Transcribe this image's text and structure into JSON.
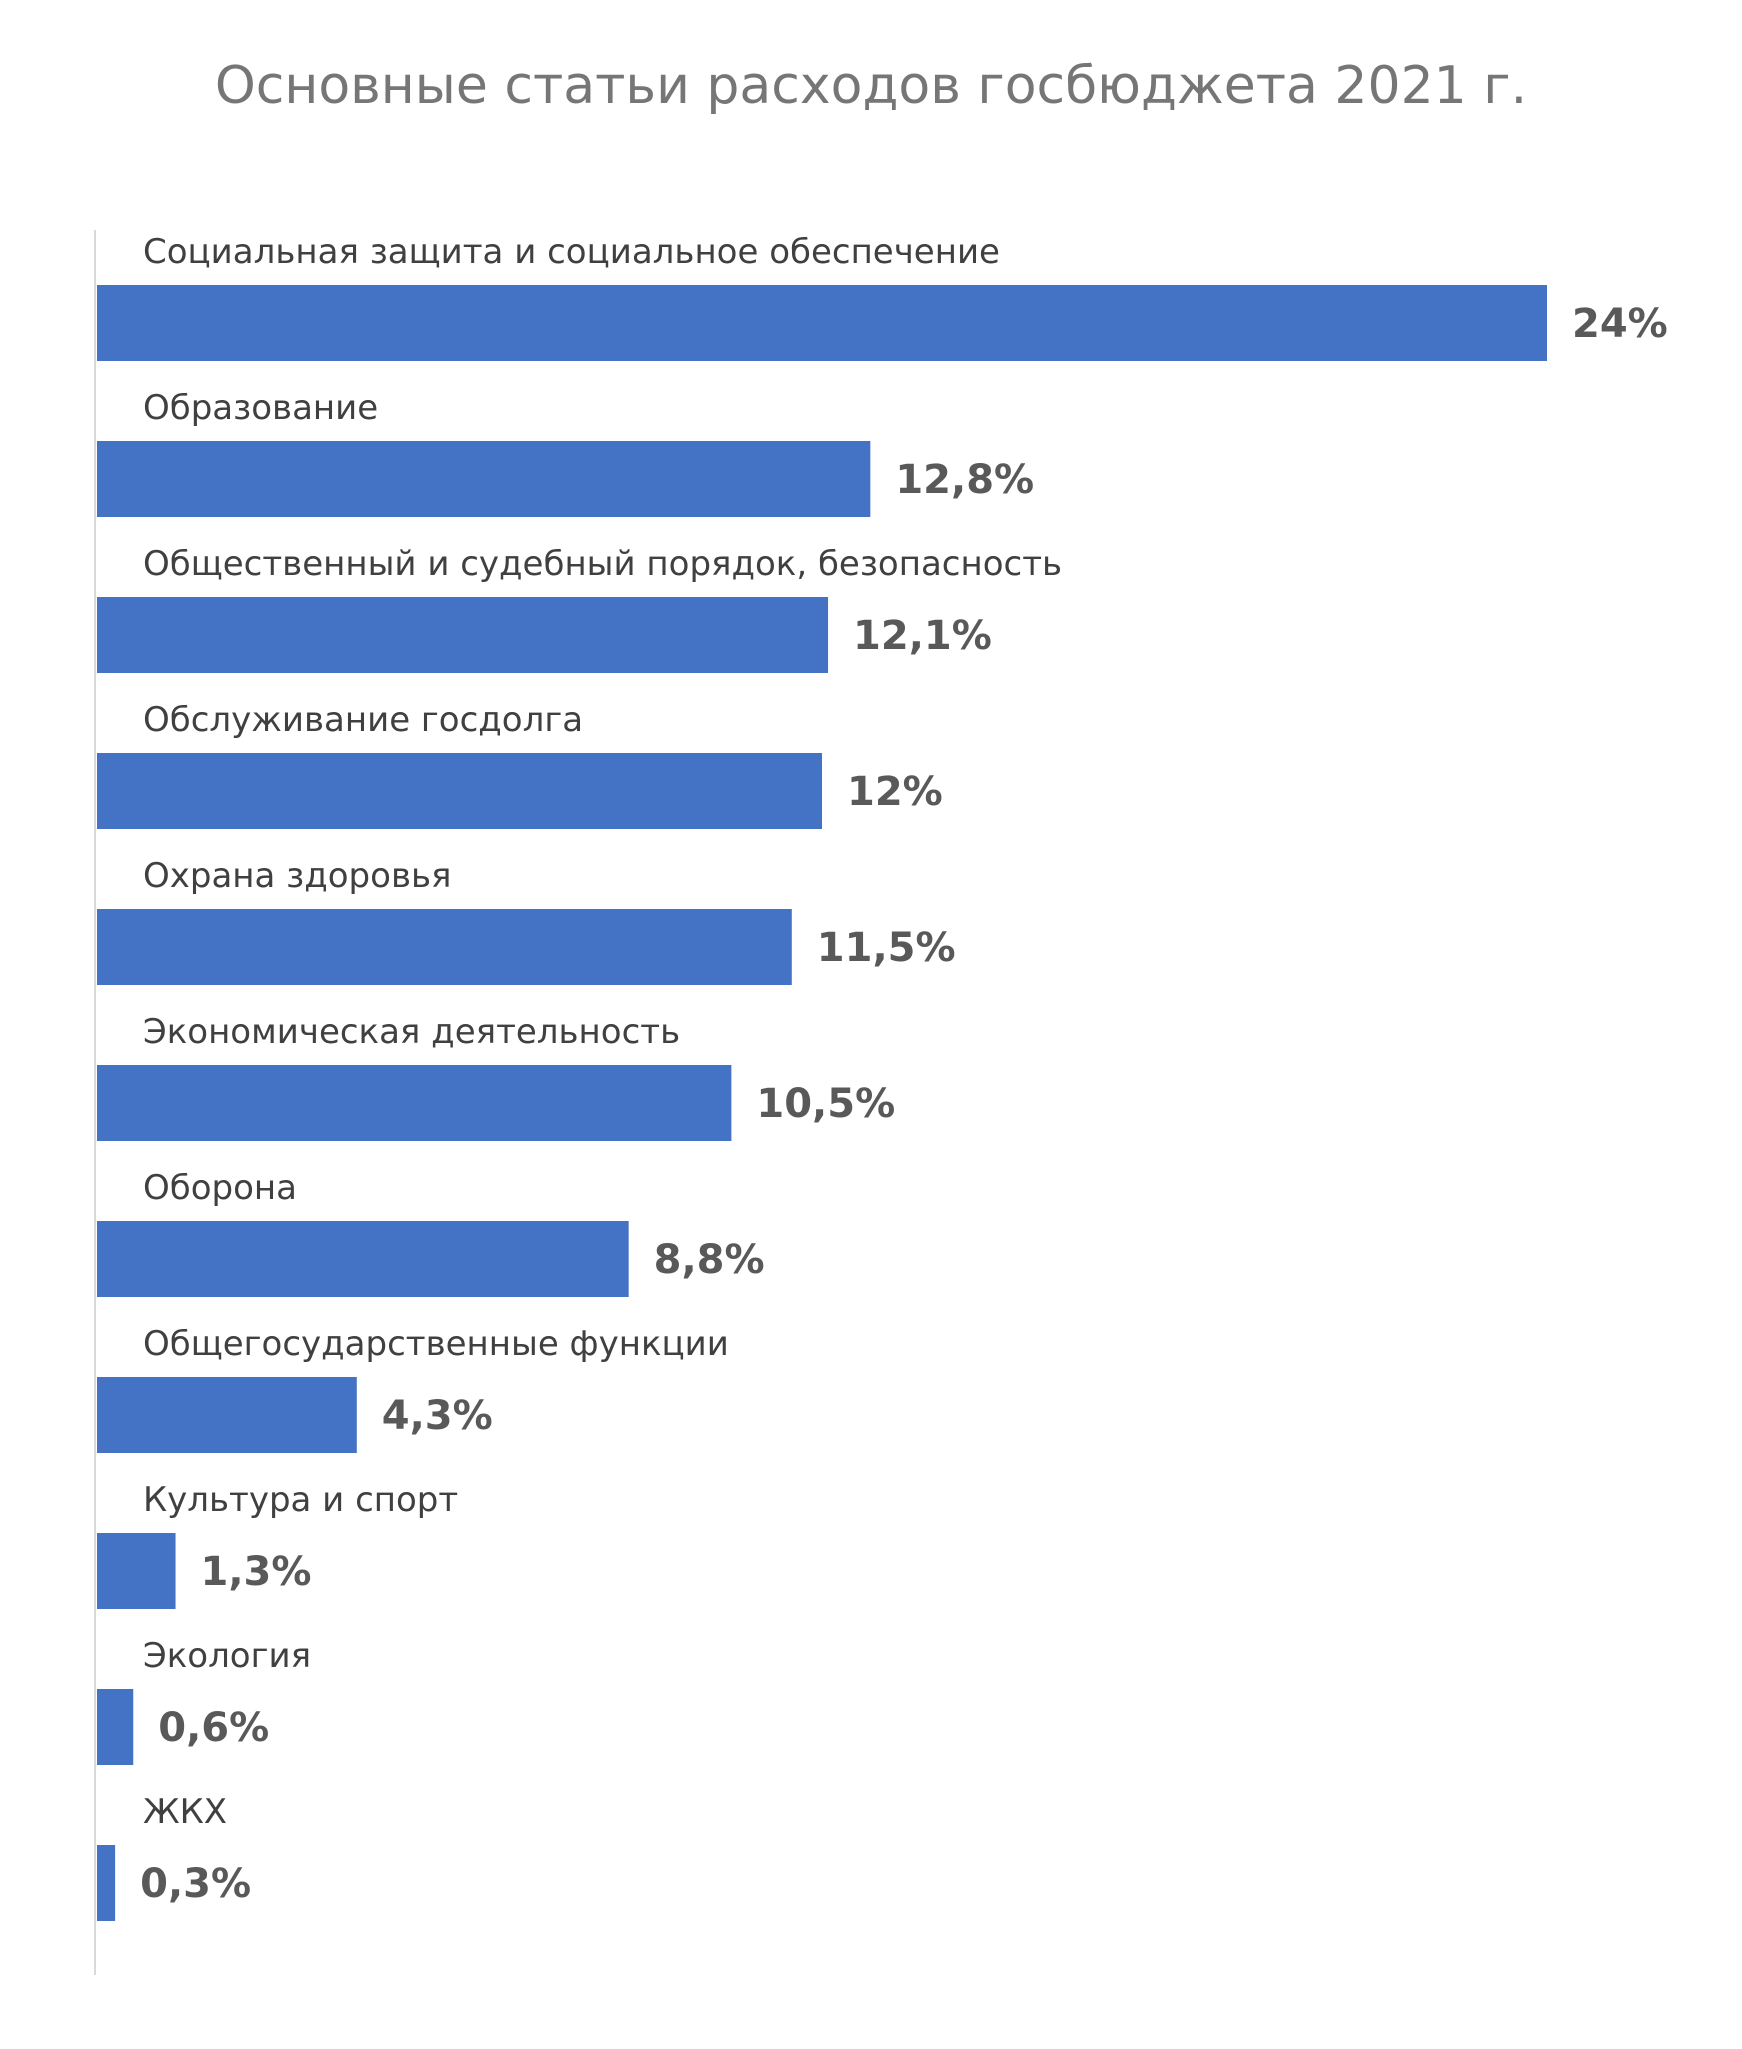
{
  "chart_data": {
    "type": "bar",
    "orientation": "horizontal",
    "title": "Основные статьи расходов госбюджета 2021 г.",
    "categories": [
      "Социальная защита и социальное обеспечение",
      "Образование",
      "Общественный и судебный порядок, безопасность",
      "Обслуживание госдолга",
      "Охрана здоровья",
      "Экономическая деятельность",
      "Оборона",
      "Общегосударственные функции",
      "Культура и спорт",
      "Экология",
      "ЖКХ"
    ],
    "values": [
      24,
      12.8,
      12.1,
      12,
      11.5,
      10.5,
      8.8,
      4.3,
      1.3,
      0.6,
      0.3
    ],
    "data_labels": [
      "24%",
      "12,8%",
      "12,1%",
      "12%",
      "11,5%",
      "10,5%",
      "8,8%",
      "4,3%",
      "1,3%",
      "0,6%",
      "0,3%"
    ],
    "unit": "%",
    "xlim": [
      0,
      24
    ],
    "grid": false,
    "legend": "none",
    "colors": {
      "bar": "#4472C4",
      "axis": "#D9D9D9",
      "title": "#767676",
      "category_label": "#404040",
      "value_label": "#595959"
    }
  }
}
